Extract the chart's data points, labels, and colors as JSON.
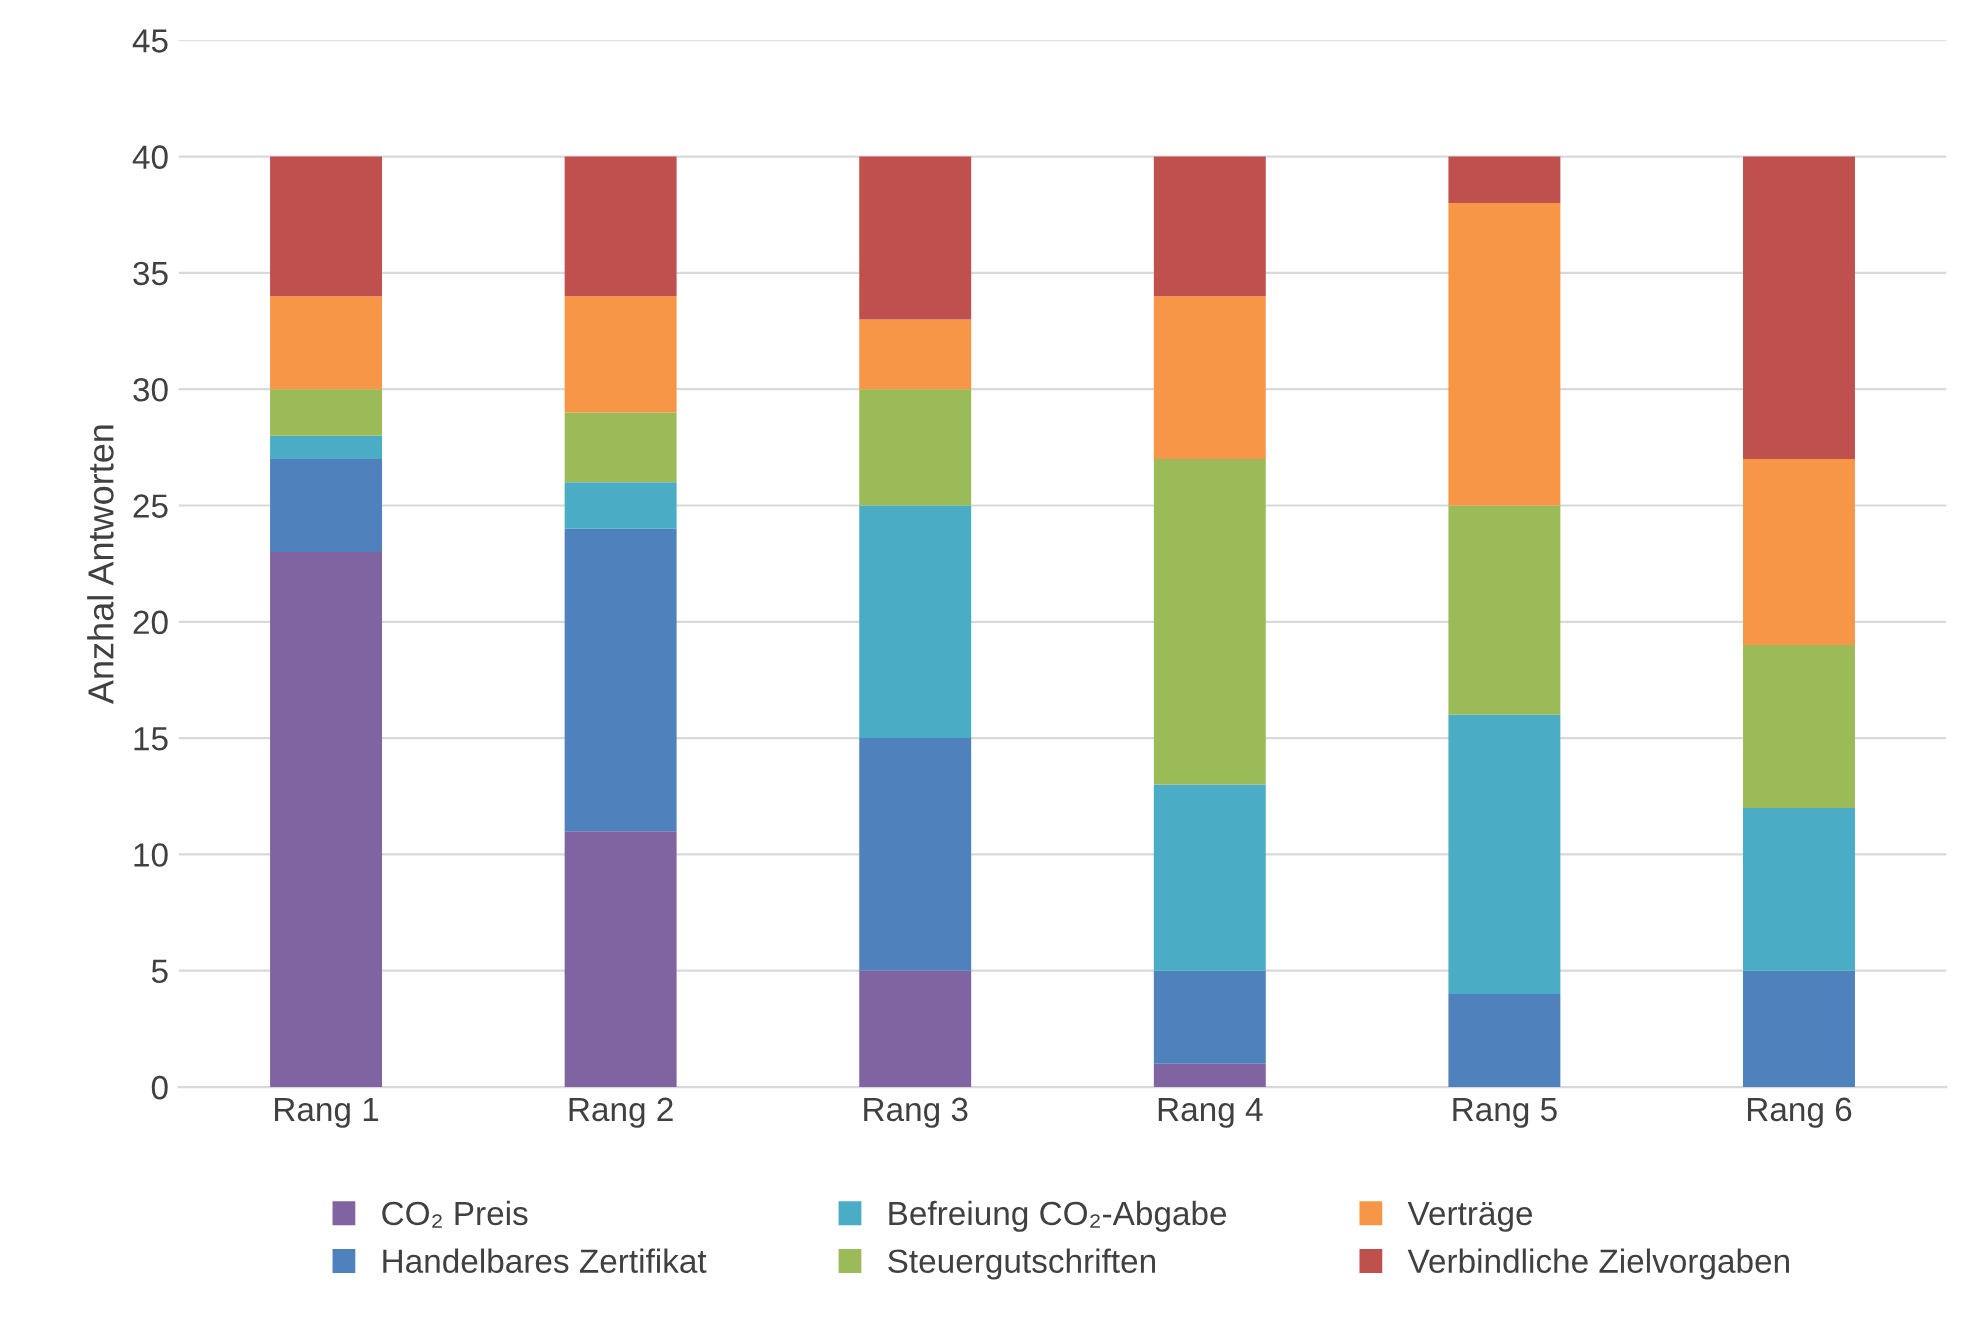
{
  "chart_data": {
    "type": "bar",
    "stacked": true,
    "ylabel": "Anzhal Antworten",
    "categories": [
      "Rang 1",
      "Rang 2",
      "Rang 3",
      "Rang 4",
      "Rang 5",
      "Rang 6"
    ],
    "series": [
      {
        "name": "CO₂ Preis",
        "color": "#8064a2",
        "values": [
          23,
          11,
          5,
          1,
          0,
          0
        ]
      },
      {
        "name": "Handelbares Zertifikat",
        "color": "#4f81bd",
        "values": [
          4,
          13,
          10,
          4,
          4,
          5
        ]
      },
      {
        "name": "Befreiung CO₂-Abgabe",
        "color": "#4bacc6",
        "values": [
          1,
          2,
          10,
          8,
          12,
          7
        ]
      },
      {
        "name": "Steuergutschriften",
        "color": "#9bbb59",
        "values": [
          2,
          3,
          5,
          14,
          9,
          7
        ]
      },
      {
        "name": "Verträge",
        "color": "#f79646",
        "values": [
          4,
          5,
          3,
          7,
          13,
          8
        ]
      },
      {
        "name": "Verbindliche Zielvorgaben",
        "color": "#c0504d",
        "values": [
          6,
          6,
          7,
          6,
          2,
          13
        ]
      }
    ],
    "ylim": [
      0,
      45
    ],
    "yticks": [
      0,
      5,
      10,
      15,
      20,
      25,
      30,
      35,
      40,
      45
    ],
    "grid": "y",
    "legend": "bottom"
  }
}
